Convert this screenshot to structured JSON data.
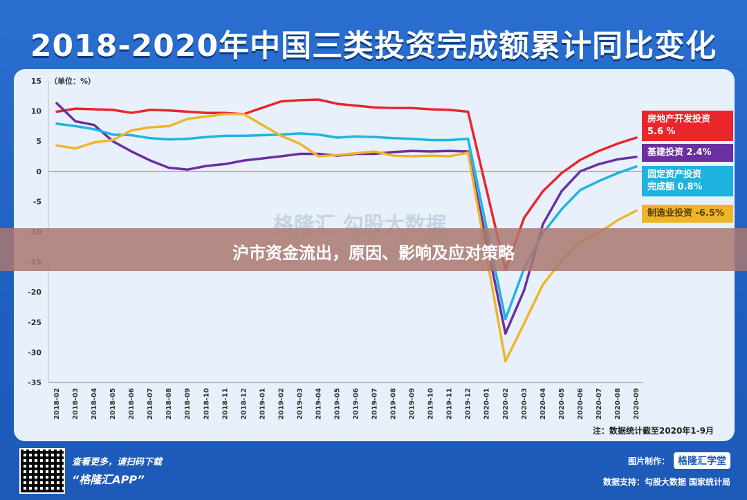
{
  "title": "2018-2020年中国三类投资完成额累计同比变化",
  "unit_label": "（单位：%）",
  "note": "注：数据统计截至2020年1-9月",
  "banner": "沪市资金流出，原因、影响及应对策略",
  "watermark": "格隆汇  勾股大数据",
  "footer": {
    "line1": "查看更多，请扫码下载",
    "line2": "“格隆汇APP”",
    "made_by_label": "图片制作：",
    "made_by_brand": "格隆汇学堂",
    "source": "数据支持：勾股大数据  国家统计局"
  },
  "chart_data": {
    "type": "line",
    "title": "2018-2020年中国三类投资完成额累计同比变化",
    "ylabel": "（单位：%）",
    "ylim": [
      -35,
      15
    ],
    "yticks": [
      15,
      10,
      5,
      0,
      -5,
      -10,
      -15,
      -20,
      -25,
      -30,
      -35
    ],
    "categories": [
      "2018-02",
      "2018-03",
      "2018-04",
      "2018-05",
      "2018-06",
      "2018-07",
      "2018-08",
      "2018-09",
      "2018-10",
      "2018-11",
      "2018-12",
      "2019-01",
      "2019-02",
      "2019-03",
      "2019-04",
      "2019-05",
      "2019-06",
      "2019-07",
      "2019-08",
      "2019-09",
      "2019-10",
      "2019-11",
      "2019-12",
      "2020-01",
      "2020-02",
      "2020-03",
      "2020-04",
      "2020-05",
      "2020-06",
      "2020-07",
      "2020-08",
      "2020-09"
    ],
    "series": [
      {
        "name": "房地产开发投资",
        "label": "房地产开发投资\n5.6 %",
        "color": "#e8262b",
        "values": [
          9.9,
          10.4,
          10.3,
          10.2,
          9.7,
          10.2,
          10.1,
          9.9,
          9.7,
          9.7,
          9.5,
          null,
          11.6,
          11.8,
          11.9,
          11.2,
          10.9,
          10.6,
          10.5,
          10.5,
          10.3,
          10.2,
          9.9,
          null,
          -16.3,
          -7.7,
          -3.3,
          -0.3,
          1.9,
          3.4,
          4.6,
          5.6
        ]
      },
      {
        "name": "基建投资",
        "label": "基建投资 2.4%",
        "color": "#6a2fa0",
        "values": [
          11.3,
          8.3,
          7.7,
          5.0,
          3.3,
          1.8,
          0.6,
          0.3,
          0.9,
          1.2,
          1.8,
          null,
          2.5,
          2.9,
          2.9,
          2.6,
          2.9,
          2.9,
          3.2,
          3.4,
          3.3,
          3.4,
          3.3,
          null,
          -26.9,
          -19.7,
          -8.8,
          -3.3,
          0.0,
          1.2,
          2.0,
          2.4
        ]
      },
      {
        "name": "固定资产投资完成额",
        "label": "固定资产投资\n完成额 0.8%",
        "color": "#1fb3e0",
        "values": [
          7.9,
          7.5,
          7.0,
          6.1,
          6.0,
          5.5,
          5.3,
          5.4,
          5.7,
          5.9,
          5.9,
          null,
          6.1,
          6.3,
          6.1,
          5.6,
          5.8,
          5.7,
          5.5,
          5.4,
          5.2,
          5.2,
          5.4,
          null,
          -24.5,
          -16.1,
          -10.3,
          -6.3,
          -3.1,
          -1.6,
          -0.3,
          0.8
        ]
      },
      {
        "name": "制造业投资",
        "label": "制造业投资 -6.5%",
        "color": "#f0b429",
        "values": [
          4.3,
          3.8,
          4.8,
          5.2,
          6.8,
          7.3,
          7.5,
          8.7,
          9.1,
          9.5,
          9.5,
          null,
          5.9,
          4.6,
          2.5,
          2.7,
          3.0,
          3.3,
          2.6,
          2.5,
          2.6,
          2.5,
          3.1,
          null,
          -31.5,
          -25.2,
          -18.8,
          -14.8,
          -11.7,
          -10.2,
          -8.1,
          -6.5
        ]
      }
    ],
    "grid": false
  }
}
